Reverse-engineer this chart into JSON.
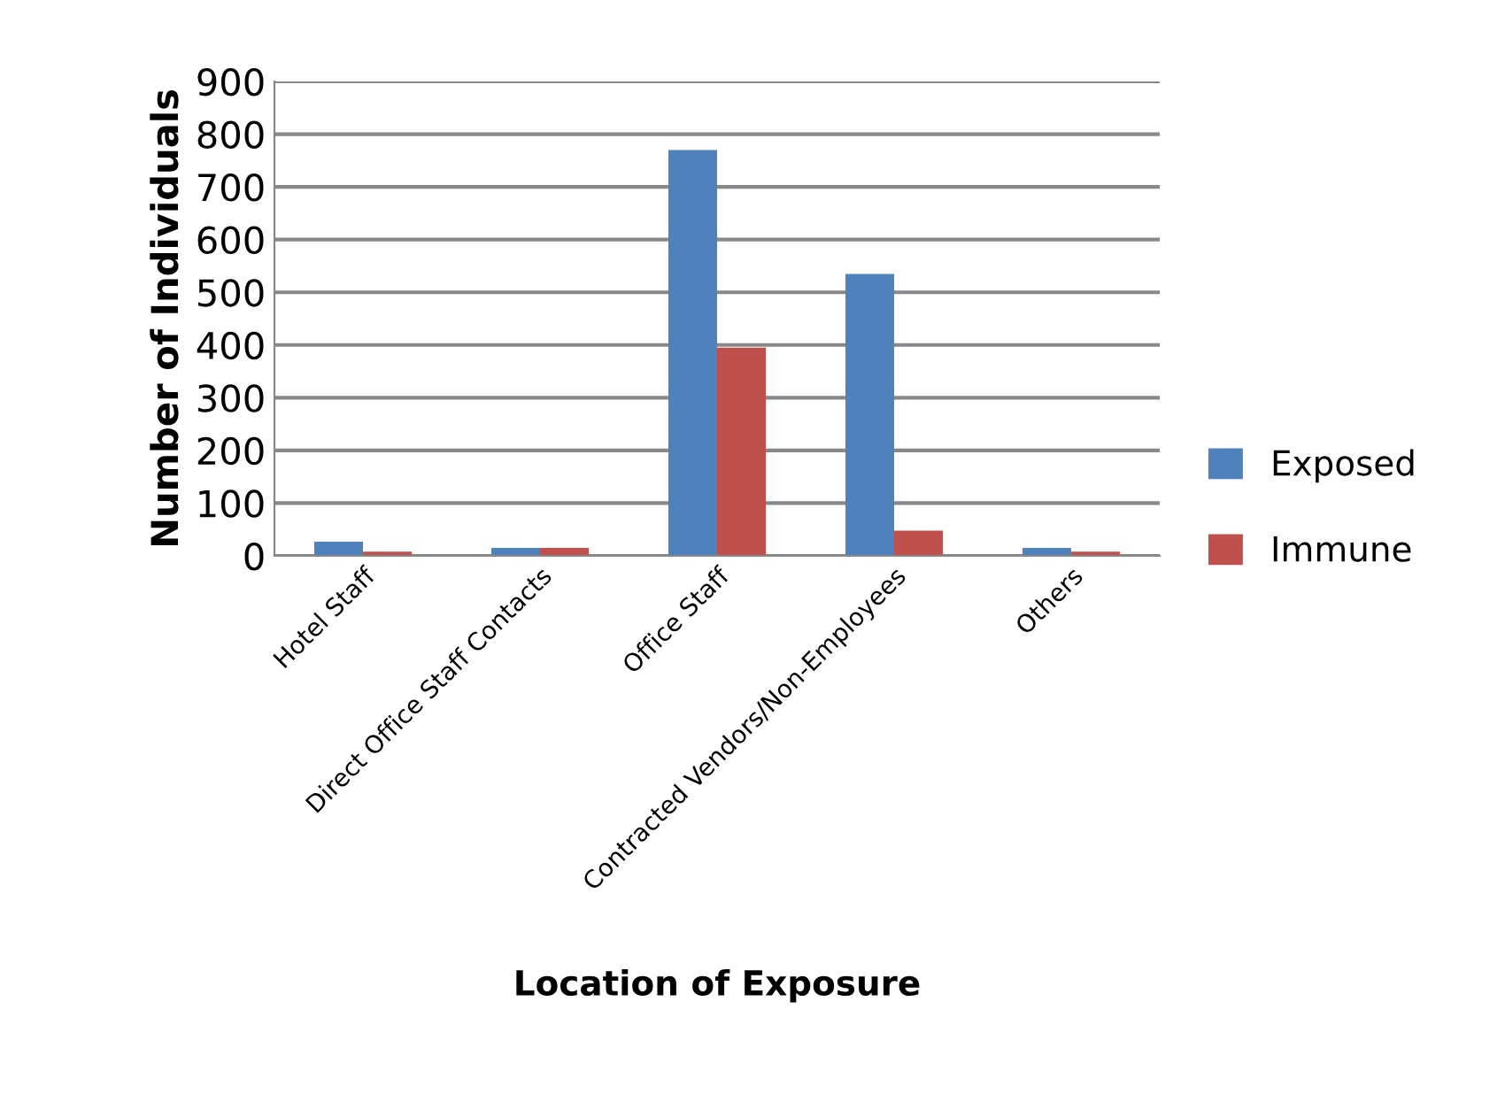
{
  "chart_data": {
    "type": "bar",
    "xlabel": "Location of Exposure",
    "ylabel": "Number of Individuals",
    "categories": [
      "Hotel Staff",
      "Direct Office Staff Contacts",
      "Office Staff",
      "Contracted Vendors/Non-Employees",
      "Others"
    ],
    "series": [
      {
        "name": "Exposed",
        "color": "#4f81bd",
        "values": [
          27,
          15,
          770,
          535,
          15
        ]
      },
      {
        "name": "Immune",
        "color": "#c0504d",
        "values": [
          8,
          15,
          395,
          48,
          8
        ]
      }
    ],
    "ylim": [
      0,
      900
    ],
    "yticks": [
      0,
      100,
      200,
      300,
      400,
      500,
      600,
      700,
      800,
      900
    ],
    "grid": "y",
    "legend": "right"
  }
}
